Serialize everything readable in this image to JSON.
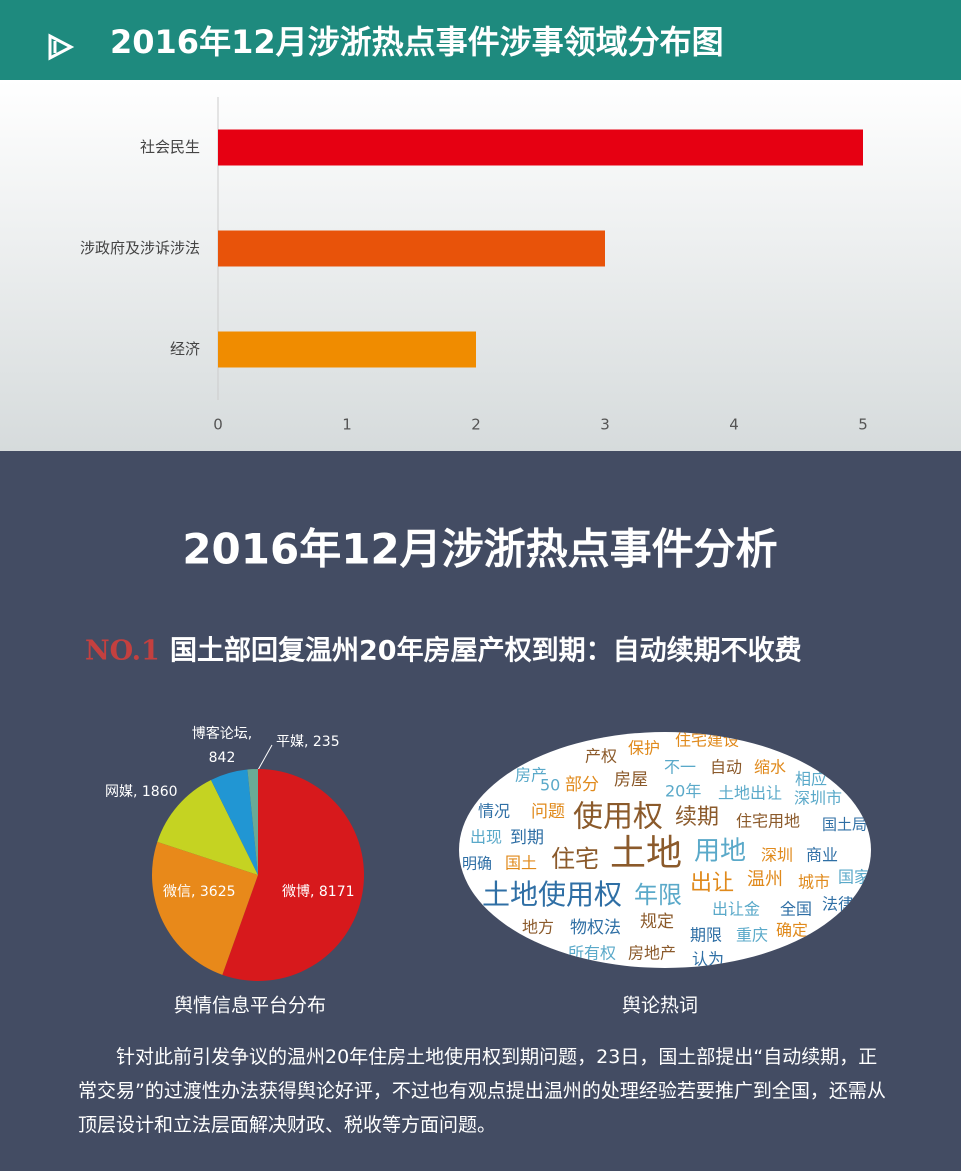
{
  "header": {
    "title": "2016年12月涉浙热点事件涉事领域分布图"
  },
  "chart_data": [
    {
      "type": "bar",
      "horizontal": true,
      "categories": [
        "社会民生",
        "涉政府及涉诉涉法",
        "经济"
      ],
      "values": [
        5,
        3,
        2
      ],
      "colors": [
        "#e60012",
        "#e8530a",
        "#f08c00"
      ],
      "xlim": [
        0,
        5
      ],
      "xticks": [
        0,
        1,
        2,
        3,
        4,
        5
      ],
      "grid": false
    },
    {
      "type": "pie",
      "title": "舆情信息平台分布",
      "values": [
        8171,
        3625,
        1860,
        842,
        235
      ],
      "value_labels": [
        "微博, 8171",
        "微信, 3625",
        "网媒, 1860",
        "博客论坛, 842",
        "平媒, 235"
      ],
      "colors": [
        "#d7191c",
        "#e8891a",
        "#c5d322",
        "#2196d3",
        "#6aaa96"
      ]
    }
  ],
  "section": {
    "title": "2016年12月涉浙热点事件分析",
    "number": "NO.1",
    "headline": "国土部回复温州20年房屋产权到期：自动续期不收费"
  },
  "word_cloud": {
    "caption": "舆论热词",
    "words": [
      "土地",
      "使用权",
      "土地使用权",
      "住宅",
      "用地",
      "年限",
      "出让",
      "续期",
      "问题",
      "部分",
      "房屋",
      "产权",
      "保护",
      "住宅建设",
      "不一",
      "自动",
      "缩水",
      "相应",
      "20年",
      "土地出让",
      "深圳市",
      "情况",
      "出现",
      "到期",
      "住宅用地",
      "国土局",
      "明确",
      "国土",
      "深圳",
      "商业",
      "温州",
      "城市",
      "国家",
      "出让金",
      "全国",
      "法律",
      "地方",
      "物权法",
      "规定",
      "期限",
      "重庆",
      "确定",
      "所有权",
      "房地产",
      "认为",
      "50",
      "房产"
    ]
  },
  "paragraph": "针对此前引发争议的温州20年住房土地使用权到期问题，23日，国土部提出“自动续期，正常交易”的过渡性办法获得舆论好评，不过也有观点提出温州的处理经验若要推广到全国，还需从顶层设计和立法层面解决财政、税收等方面问题。"
}
